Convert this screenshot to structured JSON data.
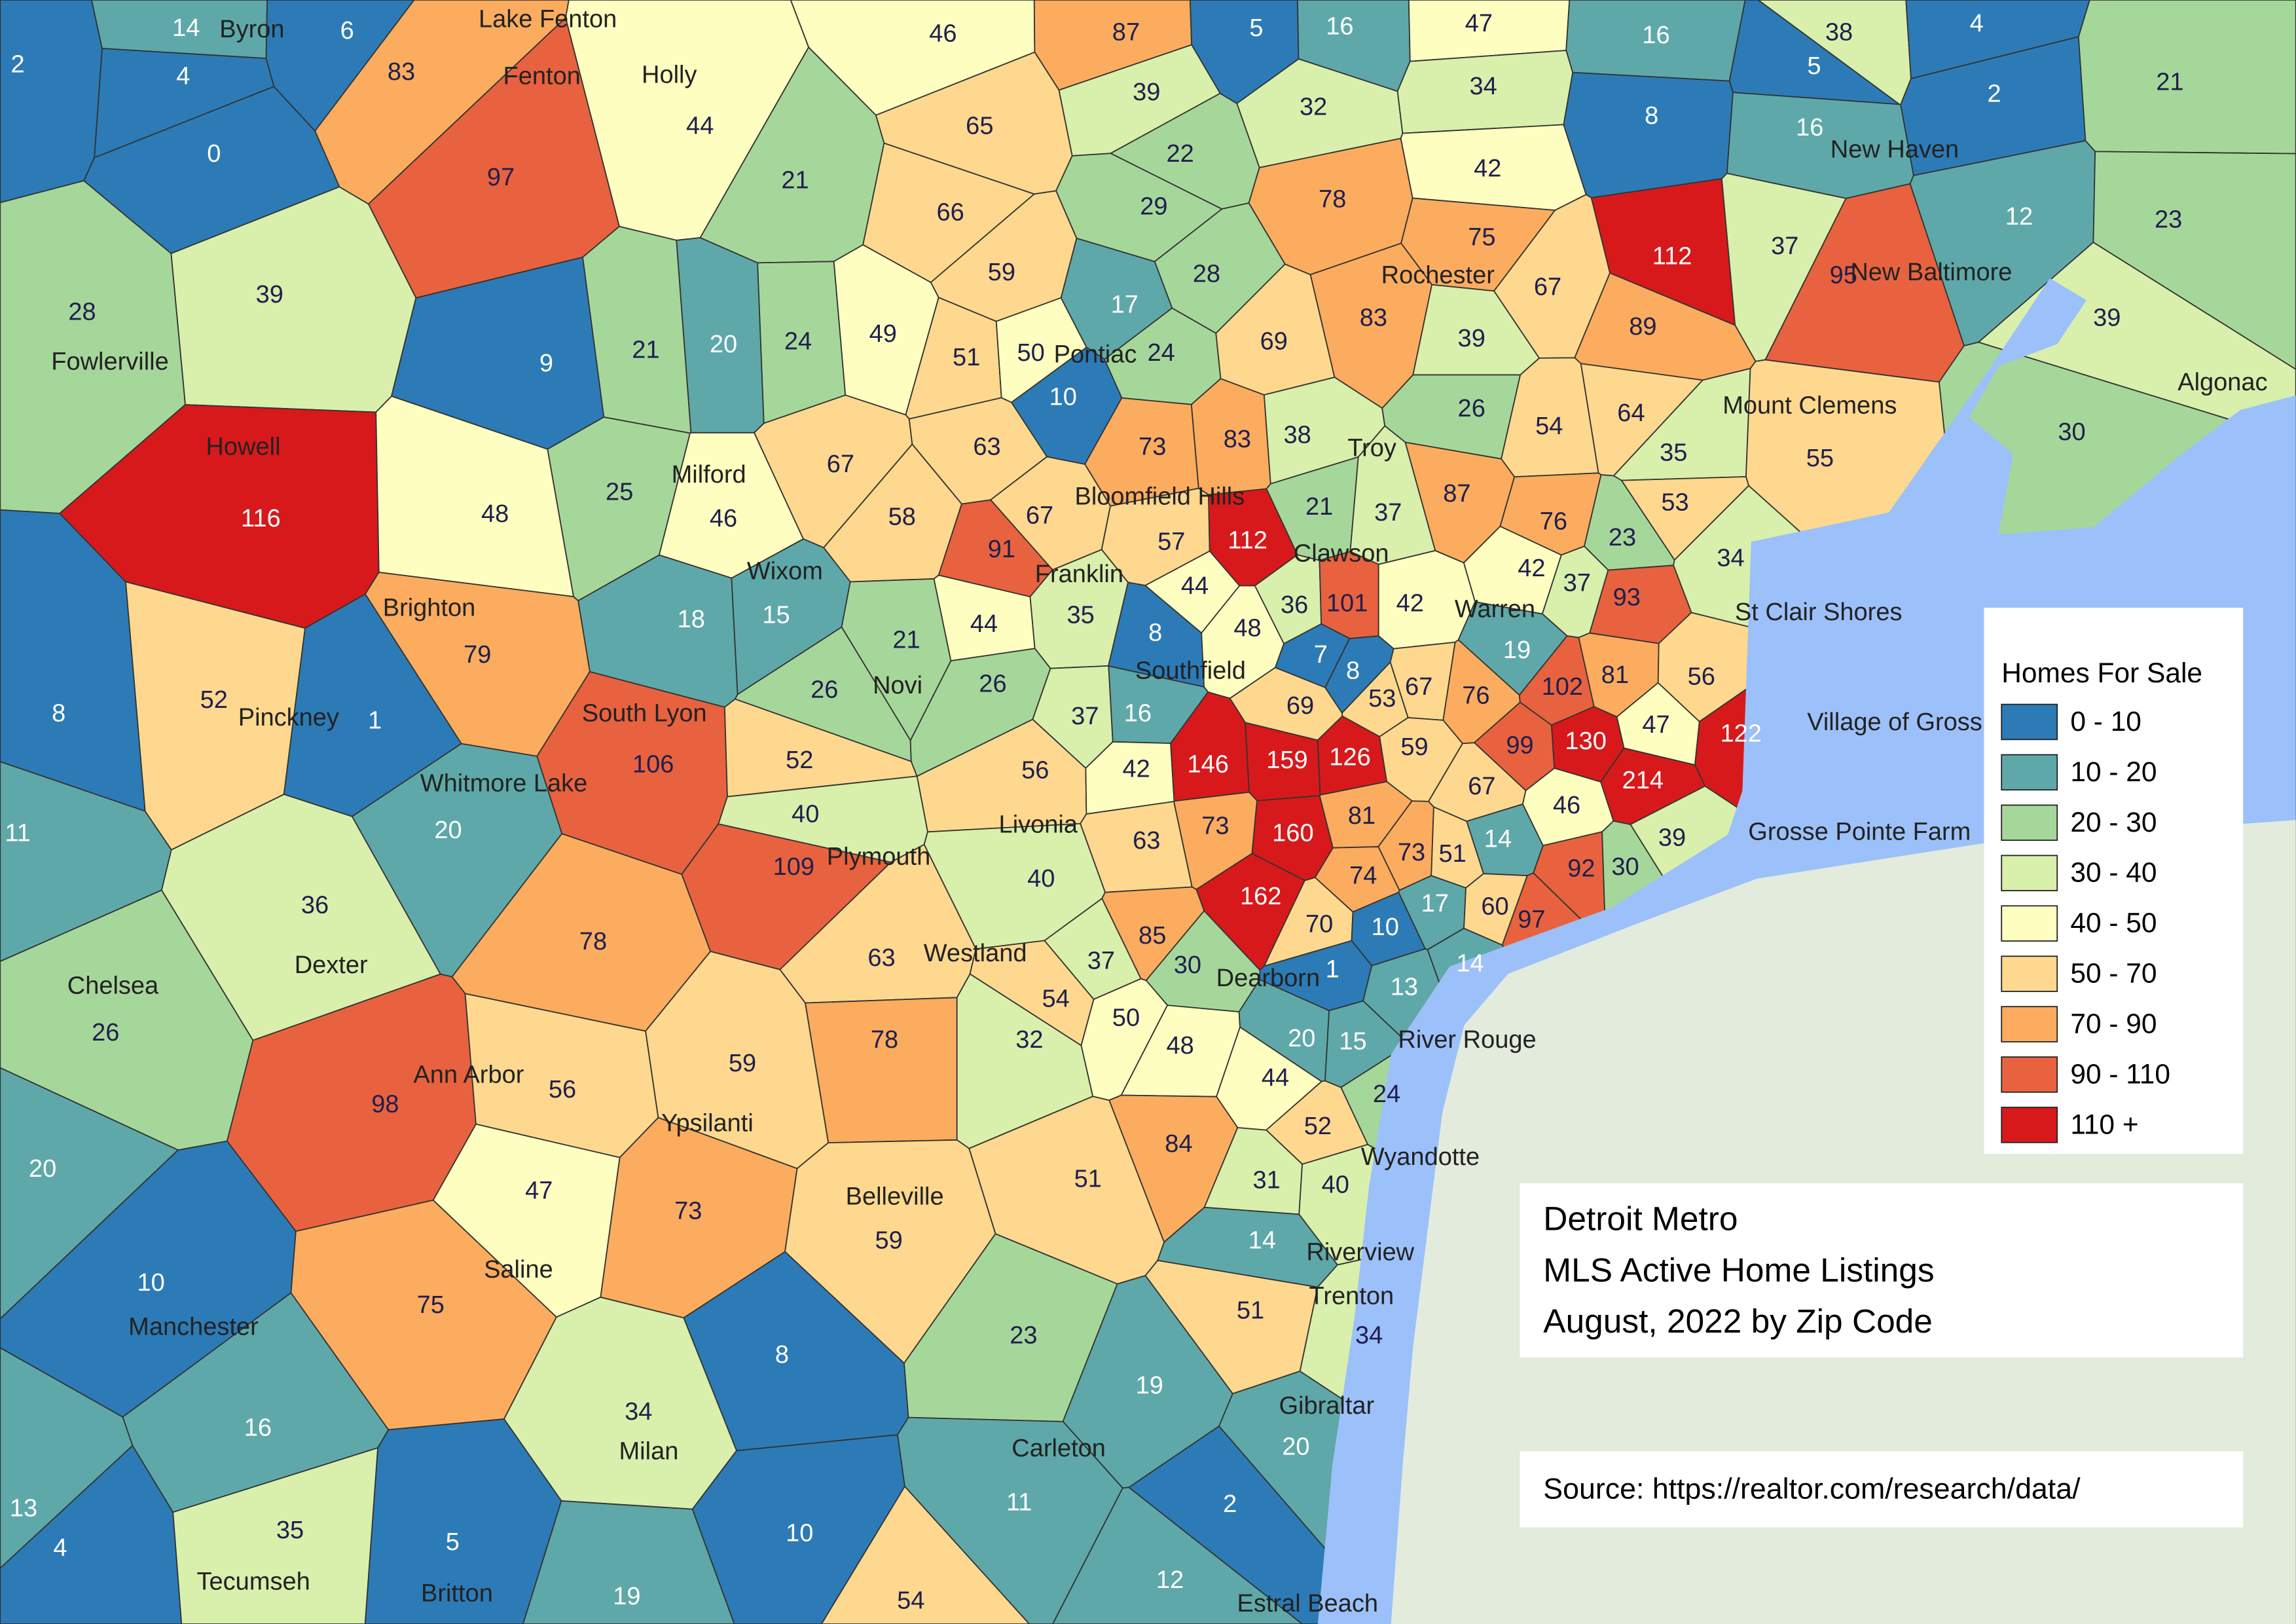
{
  "map": {
    "title_lines": [
      "Detroit Metro",
      "MLS Active Home Listings",
      "August, 2022 by Zip Code"
    ],
    "source": "Source: https://realtor.com/research/data/",
    "legend": {
      "title": "Homes For Sale",
      "items": [
        {
          "label": "0 - 10",
          "color": "#2c7bb6",
          "min": 0,
          "max": 10
        },
        {
          "label": "10 - 20",
          "color": "#5fa8a9",
          "min": 10,
          "max": 20
        },
        {
          "label": "20 - 30",
          "color": "#a6d79a",
          "min": 20,
          "max": 30
        },
        {
          "label": "30 - 40",
          "color": "#d9efac",
          "min": 30,
          "max": 40
        },
        {
          "label": "40 - 50",
          "color": "#fefec0",
          "min": 40,
          "max": 50
        },
        {
          "label": "50 - 70",
          "color": "#fdd88e",
          "min": 50,
          "max": 70
        },
        {
          "label": "70 - 90",
          "color": "#fbac5e",
          "min": 70,
          "max": 90
        },
        {
          "label": "90 - 110",
          "color": "#e8623f",
          "min": 90,
          "max": 110
        },
        {
          "label": "110 +",
          "color": "#d7191c",
          "min": 110
        }
      ]
    },
    "places": [
      "Byron",
      "Lake Fenton",
      "Fenton",
      "Holly",
      "New Haven",
      "Fowlerville",
      "Rochester",
      "New Baltimore",
      "Pontiac",
      "Howell",
      "Milford",
      "Troy",
      "Mount Clemens",
      "Algonac",
      "Bloomfield Hills",
      "Clawson",
      "Wixom",
      "Franklin",
      "Brighton",
      "Warren",
      "St Clair Shores",
      "Novi",
      "Southfield",
      "Pinckney",
      "South Lyon",
      "Village of Gross",
      "Whitmore Lake",
      "Livonia",
      "Grosse Pointe Farm",
      "Plymouth",
      "Westland",
      "Chelsea",
      "Dexter",
      "Dearborn",
      "River Rouge",
      "Ann Arbor",
      "Ypsilanti",
      "Wyandotte",
      "Belleville",
      "Saline",
      "Riverview",
      "Trenton",
      "Manchester",
      "Milan",
      "Gibraltar",
      "Carleton",
      "Tecumseh",
      "Britton",
      "Estral Beach"
    ],
    "zip_counts": [
      2,
      14,
      4,
      6,
      83,
      46,
      87,
      5,
      16,
      47,
      16,
      38,
      5,
      4,
      2,
      8,
      16,
      21,
      0,
      97,
      44,
      65,
      39,
      32,
      34,
      21,
      66,
      22,
      29,
      78,
      42,
      112,
      12,
      23,
      39,
      28,
      59,
      28,
      75,
      37,
      95,
      9,
      21,
      20,
      24,
      49,
      51,
      50,
      24,
      17,
      69,
      83,
      39,
      67,
      89,
      39,
      116,
      25,
      48,
      46,
      67,
      10,
      63,
      73,
      83,
      38,
      26,
      54,
      64,
      35,
      55,
      30,
      58,
      67,
      21,
      37,
      87,
      76,
      53,
      23,
      91,
      57,
      112,
      42,
      37,
      34,
      93,
      18,
      15,
      21,
      44,
      35,
      8,
      44,
      36,
      101,
      42,
      48,
      7,
      19,
      79,
      52,
      26,
      26,
      37,
      16,
      69,
      8,
      53,
      67,
      76,
      102,
      81,
      56,
      8,
      1,
      106,
      52,
      56,
      42,
      146,
      159,
      126,
      59,
      99,
      130,
      47,
      122,
      214,
      67,
      46,
      11,
      20,
      40,
      63,
      73,
      160,
      81,
      14,
      73,
      51,
      39,
      92,
      30,
      109,
      40,
      74,
      17,
      162,
      36,
      78,
      70,
      60,
      97,
      10,
      63,
      85,
      37,
      30,
      1,
      14,
      13,
      26,
      54,
      50,
      48,
      32,
      78,
      20,
      15,
      98,
      56,
      59,
      44,
      24,
      52,
      47,
      73,
      84,
      51,
      31,
      40,
      20,
      10,
      59,
      75,
      14,
      51,
      34,
      23,
      8,
      19,
      34,
      16,
      20,
      13,
      4,
      5,
      35,
      11,
      2,
      10,
      12,
      19,
      54
    ]
  }
}
